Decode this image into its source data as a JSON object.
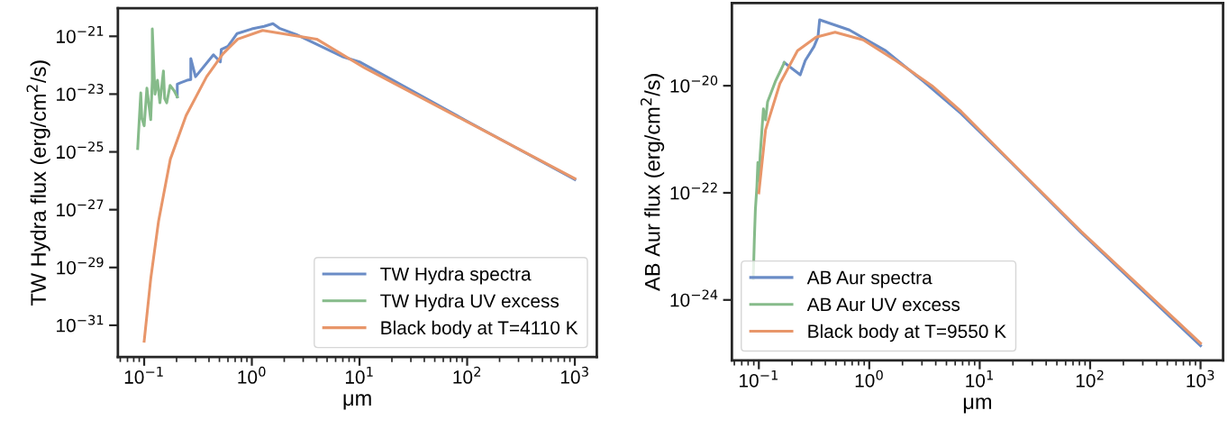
{
  "chart_data": [
    {
      "type": "line",
      "xlabel": "μm",
      "ylabel": "TW Hydra flux (erg/cm$^{2}$/s)",
      "log": "xy",
      "grid": false,
      "legend": "bottom right",
      "xlim": [
        0.057,
        1600
      ],
      "ylim": [
        8e-33,
        9.3e-21
      ],
      "xticks": [
        {
          "value": 0.1,
          "label": "10$^{−1}$"
        },
        {
          "value": 1,
          "label": "10$^{0}$"
        },
        {
          "value": 10,
          "label": "10$^{1}$"
        },
        {
          "value": 100,
          "label": "10$^{2}$"
        },
        {
          "value": 1000,
          "label": "10$^{3}$"
        }
      ],
      "yticks": [
        {
          "value": 1e-31,
          "label": "10$^{−31}$"
        },
        {
          "value": 1e-29,
          "label": "10$^{−29}$"
        },
        {
          "value": 1e-27,
          "label": "10$^{−27}$"
        },
        {
          "value": 1e-25,
          "label": "10$^{−25}$"
        },
        {
          "value": 1e-23,
          "label": "10$^{−23}$"
        },
        {
          "value": 1e-21,
          "label": "10$^{−21}$"
        }
      ],
      "series": [
        {
          "name": "TW Hydra spectra",
          "color": "#6a8cc6",
          "x": [
            0.203,
            0.203,
            0.22,
            0.25,
            0.271,
            0.271,
            0.3,
            0.44,
            0.51,
            0.52,
            0.6,
            0.73,
            1.0,
            1.3,
            1.57,
            1.8,
            2.6,
            4.7,
            6.9,
            10,
            100,
            1000
          ],
          "values": [
            8e-24,
            2.2e-23,
            2.5e-23,
            3e-23,
            3.2e-23,
            1.7e-22,
            4e-23,
            2.3e-22,
            1.3e-22,
            3.5e-22,
            4.5e-22,
            1.25e-21,
            1.8e-21,
            2.2e-21,
            2.75e-21,
            1.9e-21,
            1.15e-21,
            4e-22,
            2e-22,
            1.3e-22,
            1.15e-24,
            1.1e-26
          ]
        },
        {
          "name": "TW Hydra UV excess",
          "color": "#86bb8a",
          "x": [
            0.087,
            0.093,
            0.095,
            0.1,
            0.106,
            0.115,
            0.119,
            0.119,
            0.126,
            0.133,
            0.14,
            0.151,
            0.155,
            0.162,
            0.174,
            0.19,
            0.203
          ],
          "values": [
            1.3e-25,
            1.1e-23,
            1.5e-24,
            8e-25,
            1.6e-23,
            1.3e-24,
            3e-23,
            1.8e-21,
            1e-23,
            3e-23,
            5e-24,
            6.3e-23,
            7e-24,
            5e-24,
            2e-23,
            1.3e-23,
            8e-24
          ]
        },
        {
          "name": "Black body at T=4110 K",
          "color": "#e8966a",
          "x": [
            0.1,
            0.115,
            0.136,
            0.175,
            0.245,
            0.38,
            0.54,
            0.74,
            1.26,
            4.0,
            11.2,
            100,
            1000
          ],
          "values": [
            2.8e-32,
            4e-30,
            4e-28,
            5.6e-26,
            1.8e-24,
            4e-23,
            2.5e-22,
            8e-22,
            1.6e-21,
            8e-22,
            8e-23,
            1.1e-24,
            1.2e-26
          ]
        }
      ]
    },
    {
      "type": "line",
      "xlabel": "μm",
      "ylabel": "AB Aur flux (erg/cm$^{2}$/s)",
      "log": "xy",
      "grid": false,
      "legend": "bottom left",
      "xlim": [
        0.057,
        1600
      ],
      "ylim": [
        7.4e-26,
        3.5e-19
      ],
      "xticks": [
        {
          "value": 0.1,
          "label": "10$^{−1}$"
        },
        {
          "value": 1,
          "label": "10$^{0}$"
        },
        {
          "value": 10,
          "label": "10$^{1}$"
        },
        {
          "value": 100,
          "label": "10$^{2}$"
        },
        {
          "value": 1000,
          "label": "10$^{3}$"
        }
      ],
      "yticks": [
        {
          "value": 1e-24,
          "label": "10$^{−24}$"
        },
        {
          "value": 1e-22,
          "label": "10$^{−22}$"
        },
        {
          "value": 1e-20,
          "label": "10$^{−20}$"
        }
      ],
      "series": [
        {
          "name": "AB Aur spectra",
          "color": "#6a8cc6",
          "x": [
            0.17,
            0.237,
            0.263,
            0.316,
            0.343,
            0.355,
            0.66,
            1.41,
            3.1,
            6.8,
            19.5,
            83,
            1000
          ],
          "values": [
            2.7e-20,
            1.6e-20,
            2.95e-20,
            5.4e-20,
            8.1e-20,
            1.7e-19,
            1.1e-19,
            4.5e-20,
            1.2e-20,
            3e-21,
            3.6e-22,
            1.8e-23,
            1.4e-25
          ]
        },
        {
          "name": "AB Aur UV excess",
          "color": "#86bb8a",
          "x": [
            0.089,
            0.091,
            0.093,
            0.096,
            0.098,
            0.1,
            0.103,
            0.11,
            0.115,
            0.12,
            0.126,
            0.141,
            0.155,
            0.17
          ],
          "values": [
            2.5e-24,
            1.3e-23,
            4.8e-23,
            1.3e-22,
            3.7e-22,
            1.7e-22,
            5.4e-22,
            3.7e-21,
            2.3e-21,
            5e-21,
            6.5e-21,
            1.2e-20,
            1.8e-20,
            2.7e-20
          ]
        },
        {
          "name": "Black body at T=9550 K",
          "color": "#e8966a",
          "x": [
            0.1,
            0.115,
            0.155,
            0.224,
            0.33,
            0.49,
            0.88,
            1.74,
            3.7,
            6.8,
            19.5,
            83,
            1000
          ],
          "values": [
            1e-22,
            1.5e-21,
            1.1e-20,
            4.5e-20,
            8.1e-20,
            1e-19,
            7.2e-20,
            2.95e-20,
            1e-20,
            3.3e-21,
            3.7e-22,
            1.9e-23,
            1.55e-25
          ]
        }
      ]
    }
  ]
}
